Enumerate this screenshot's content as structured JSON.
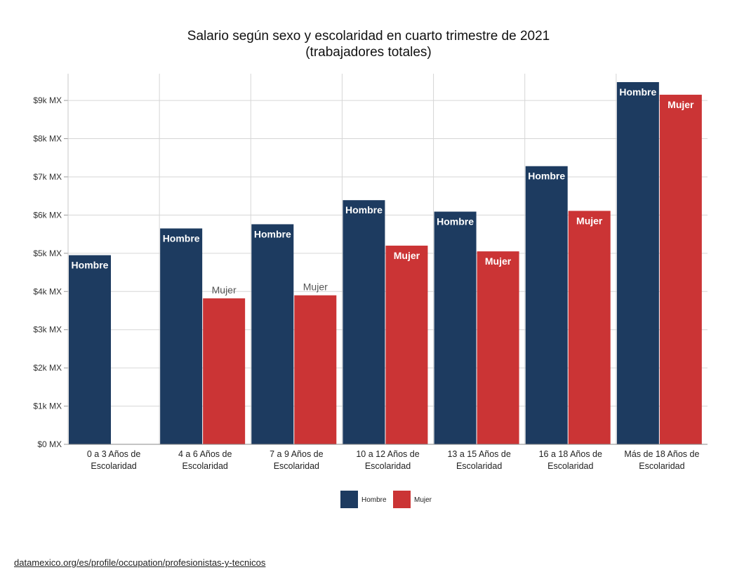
{
  "chart_data": {
    "type": "bar",
    "title": "Salario según sexo y escolaridad en cuarto trimestre de 2021",
    "subtitle": "(trabajadores totales)",
    "xlabel": "",
    "ylabel": "",
    "categories": [
      [
        "0 a 3 Años de",
        "Escolaridad"
      ],
      [
        "4 a 6 Años de",
        "Escolaridad"
      ],
      [
        "7 a 9 Años de",
        "Escolaridad"
      ],
      [
        "10 a 12 Años de",
        "Escolaridad"
      ],
      [
        "13 a 15 Años de",
        "Escolaridad"
      ],
      [
        "16 a 18 Años de",
        "Escolaridad"
      ],
      [
        "Más de 18 Años de",
        "Escolaridad"
      ]
    ],
    "series": [
      {
        "name": "Hombre",
        "color": "#1d3b60",
        "values": [
          4950,
          5650,
          5760,
          6390,
          6090,
          7280,
          9480
        ]
      },
      {
        "name": "Mujer",
        "color": "#cb3435",
        "values": [
          null,
          3820,
          3900,
          5200,
          5050,
          6110,
          9150
        ]
      }
    ],
    "ylim": [
      0,
      9700
    ],
    "yticks": [
      0,
      1000,
      2000,
      3000,
      4000,
      5000,
      6000,
      7000,
      8000,
      9000
    ],
    "ytick_labels": [
      "$0 MX",
      "$1k MX",
      "$2k MX",
      "$3k MX",
      "$4k MX",
      "$5k MX",
      "$6k MX",
      "$7k MX",
      "$8k MX",
      "$9k MX"
    ],
    "bar_labels": [
      "Hombre",
      "Mujer"
    ],
    "grid": true,
    "legend_position": "bottom-center"
  },
  "source": "datamexico.org/es/profile/occupation/profesionistas-y-tecnicos"
}
